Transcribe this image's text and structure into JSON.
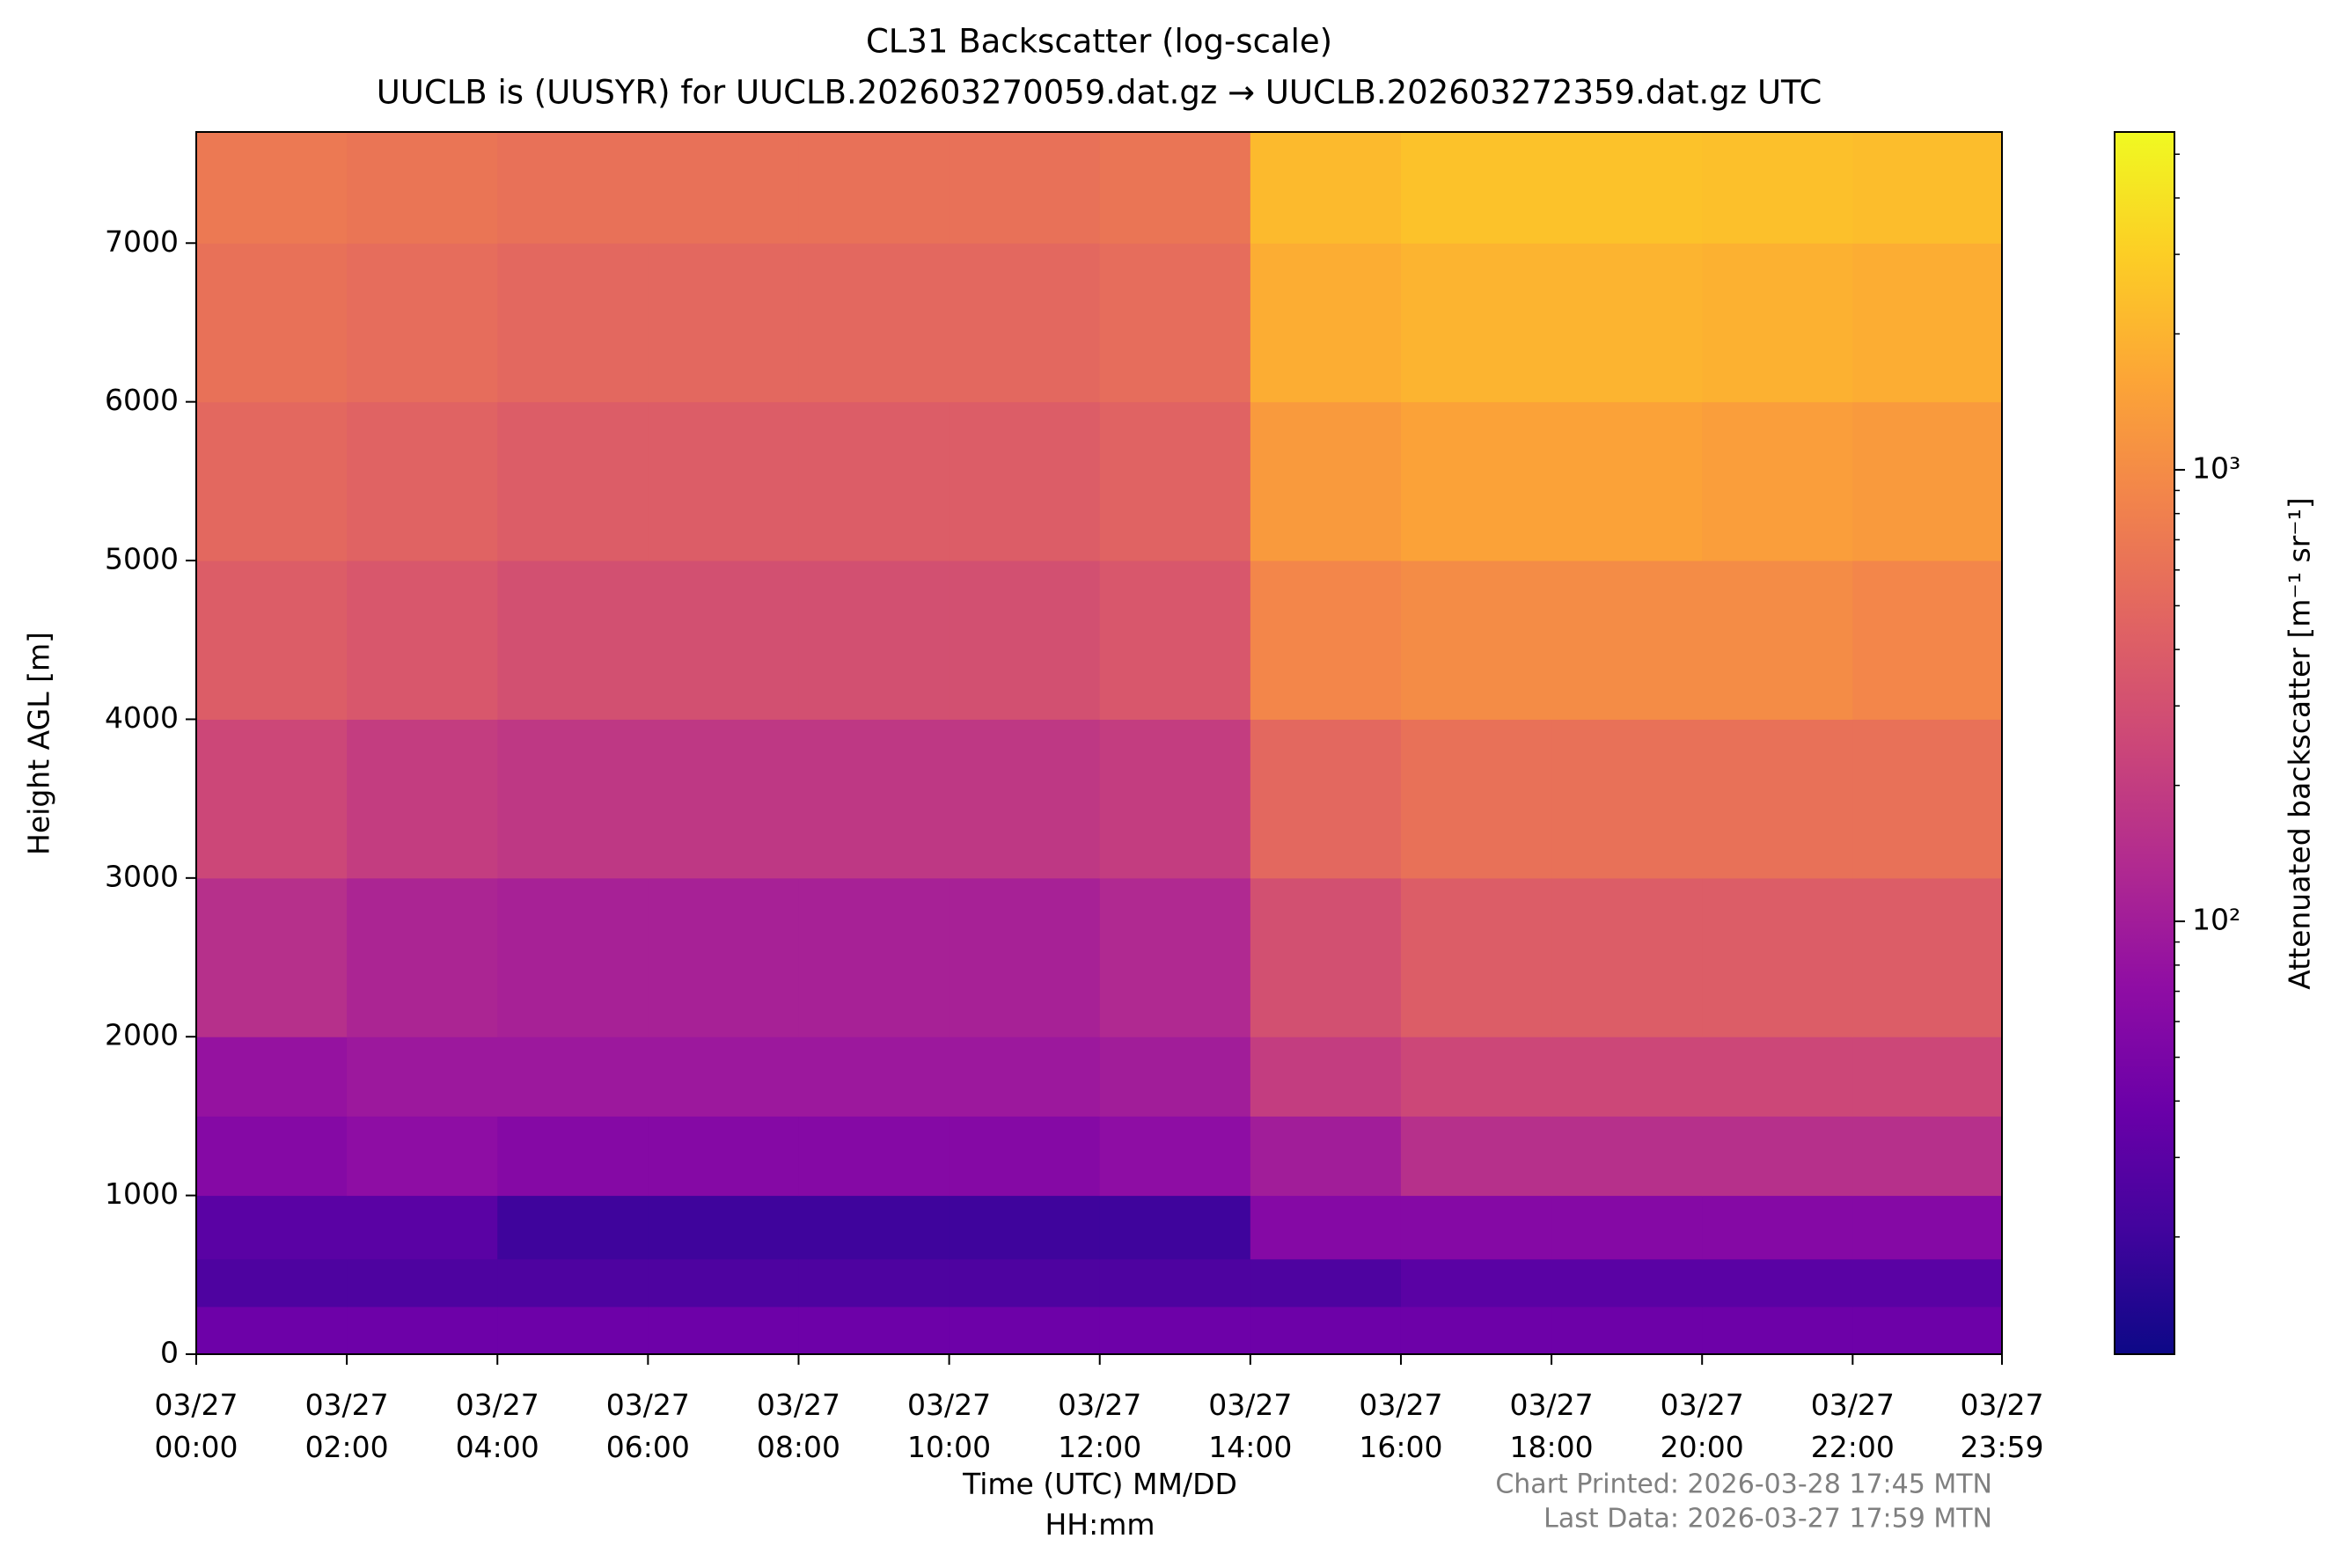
{
  "chart_data": {
    "type": "heatmap",
    "title": "CL31 Backscatter (log-scale)",
    "subtitle": "UUCLB is (UUSYR) for UUCLB.202603270059.dat.gz → UUCLB.202603272359.dat.gz UTC",
    "xlabel": "Time (UTC) MM/DD\nHH:mm",
    "ylabel": "Height AGL [m]",
    "colorbar_label": "Attenuated backscatter [m⁻¹ sr⁻¹]",
    "colormap": "plasma",
    "footnotes": [
      "Chart Printed: 2026-03-28 17:45 MTN",
      "Last Data: 2026-03-27 17:59 MTN"
    ],
    "xlim": [
      0,
      23.983
    ],
    "xticks": [
      {
        "value": 0,
        "label": "03/27\n00:00"
      },
      {
        "value": 2,
        "label": "03/27\n02:00"
      },
      {
        "value": 4,
        "label": "03/27\n04:00"
      },
      {
        "value": 6,
        "label": "03/27\n06:00"
      },
      {
        "value": 8,
        "label": "03/27\n08:00"
      },
      {
        "value": 10,
        "label": "03/27\n10:00"
      },
      {
        "value": 12,
        "label": "03/27\n12:00"
      },
      {
        "value": 14,
        "label": "03/27\n14:00"
      },
      {
        "value": 16,
        "label": "03/27\n16:00"
      },
      {
        "value": 18,
        "label": "03/27\n18:00"
      },
      {
        "value": 20,
        "label": "03/27\n20:00"
      },
      {
        "value": 22,
        "label": "03/27\n22:00"
      },
      {
        "value": 23.983,
        "label": "03/27\n23:59"
      }
    ],
    "ylim": [
      0,
      7700
    ],
    "yticks": [
      0,
      1000,
      2000,
      3000,
      4000,
      5000,
      6000,
      7000
    ],
    "clim": [
      11,
      5600
    ],
    "clog": true,
    "cticks": [
      {
        "value": 100,
        "label": "10²"
      },
      {
        "value": 1000,
        "label": "10³"
      }
    ],
    "cminor": [
      20,
      30,
      40,
      50,
      60,
      70,
      80,
      90,
      200,
      300,
      400,
      500,
      600,
      700,
      800,
      900,
      2000,
      3000,
      4000,
      5000
    ],
    "x_edges": [
      0,
      2,
      4,
      6,
      8,
      10,
      12,
      14,
      16,
      18,
      20,
      22,
      23.983
    ],
    "y_edges": [
      0,
      300,
      600,
      1000,
      1500,
      2000,
      3000,
      4000,
      5000,
      6000,
      7000,
      7700
    ],
    "z": [
      [
        40,
        40,
        40,
        40,
        40,
        40,
        40,
        40,
        40,
        40,
        40,
        40
      ],
      [
        25,
        25,
        25,
        25,
        25,
        25,
        25,
        25,
        30,
        30,
        30,
        30
      ],
      [
        30,
        30,
        20,
        20,
        20,
        20,
        20,
        60,
        60,
        60,
        60,
        60
      ],
      [
        60,
        70,
        60,
        60,
        60,
        60,
        70,
        100,
        150,
        150,
        150,
        150
      ],
      [
        80,
        90,
        90,
        90,
        90,
        90,
        100,
        200,
        250,
        250,
        250,
        250
      ],
      [
        150,
        120,
        110,
        110,
        110,
        110,
        130,
        300,
        400,
        400,
        400,
        400
      ],
      [
        250,
        200,
        180,
        180,
        180,
        180,
        200,
        500,
        600,
        600,
        600,
        600
      ],
      [
        400,
        350,
        300,
        300,
        300,
        300,
        350,
        900,
        1000,
        1000,
        1000,
        900
      ],
      [
        500,
        450,
        400,
        400,
        400,
        400,
        450,
        1300,
        1500,
        1500,
        1400,
        1300
      ],
      [
        600,
        550,
        500,
        500,
        500,
        500,
        550,
        1800,
        2000,
        2000,
        1900,
        1800
      ],
      [
        700,
        650,
        600,
        600,
        600,
        600,
        650,
        2200,
        2500,
        2500,
        2400,
        2300
      ]
    ]
  }
}
